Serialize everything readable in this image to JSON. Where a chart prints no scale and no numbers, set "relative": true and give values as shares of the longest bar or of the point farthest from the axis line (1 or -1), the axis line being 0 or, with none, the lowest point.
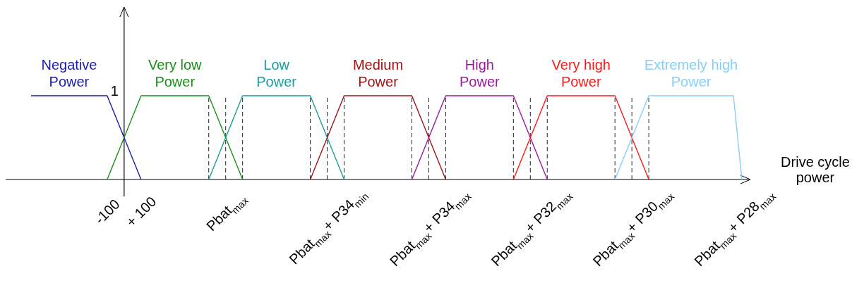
{
  "chart_data": {
    "type": "line",
    "xlabel": "Drive cycle power",
    "relative": true,
    "grid": "x",
    "categories": [
      null,
      null,
      null,
      null,
      null,
      null,
      null,
      null,
      null,
      null,
      null,
      null,
      "-100",
      null,
      null,
      null,
      "+ 100",
      null,
      null,
      null,
      null,
      null,
      null,
      null,
      null,
      null,
      "Pbat$_{max}$",
      null,
      null,
      null,
      null,
      null,
      null,
      null,
      null,
      null,
      null,
      null,
      "Pbat$_{max}$+ P34$_{min}$",
      null,
      null,
      null,
      null,
      null,
      null,
      null,
      null,
      null,
      null,
      null,
      "Pbat$_{max}$+ P34$_{max}$",
      null,
      null,
      null,
      null,
      null,
      null,
      null,
      null,
      null,
      null,
      null,
      "Pbat$_{max}$+ P32$_{max}$",
      null,
      null,
      null,
      null,
      null,
      null,
      null,
      null,
      null,
      null,
      null,
      "Pbat$_{max}$+ P30$_{max}$",
      null,
      null,
      null,
      null,
      null,
      null,
      null,
      null,
      null,
      null,
      null,
      "Pbat$_{max}$+ P28$_{max}$",
      null,
      null
    ],
    "series": [
      {
        "name": "Negative Power",
        "color": "#1c1cab",
        "values": [
          null,
          null,
          null,
          1,
          1,
          1,
          1,
          1,
          1,
          1,
          1,
          1,
          1,
          0.75,
          0.5,
          0.25,
          0,
          null,
          null,
          null,
          null,
          null,
          null,
          null,
          null,
          null,
          null,
          null,
          null,
          null,
          null,
          null,
          null,
          null,
          null,
          null,
          null,
          null,
          null,
          null,
          null,
          null,
          null,
          null,
          null,
          null,
          null,
          null,
          null,
          null,
          null,
          null,
          null,
          null,
          null,
          null,
          null,
          null,
          null,
          null,
          null,
          null,
          null,
          null,
          null,
          null,
          null,
          null,
          null,
          null,
          null,
          null,
          null,
          null,
          null,
          null,
          null,
          null,
          null,
          null,
          null,
          null,
          null,
          null,
          null,
          null,
          null,
          null,
          null
        ]
      },
      {
        "name": "Very low Power",
        "color": "#1a8f1a",
        "values": [
          null,
          null,
          null,
          null,
          null,
          null,
          null,
          null,
          null,
          null,
          null,
          null,
          0,
          0.25,
          0.5,
          0.75,
          1,
          1,
          1,
          1,
          1,
          1,
          1,
          1,
          1,
          0.75,
          0.5,
          0.25,
          0,
          null,
          null,
          null,
          null,
          null,
          null,
          null,
          null,
          null,
          null,
          null,
          null,
          null,
          null,
          null,
          null,
          null,
          null,
          null,
          null,
          null,
          null,
          null,
          null,
          null,
          null,
          null,
          null,
          null,
          null,
          null,
          null,
          null,
          null,
          null,
          null,
          null,
          null,
          null,
          null,
          null,
          null,
          null,
          null,
          null,
          null,
          null,
          null,
          null,
          null,
          null,
          null,
          null,
          null,
          null,
          null,
          null,
          null,
          null,
          null
        ]
      },
      {
        "name": "Low Power",
        "color": "#1a9c9c",
        "values": [
          null,
          null,
          null,
          null,
          null,
          null,
          null,
          null,
          null,
          null,
          null,
          null,
          null,
          null,
          null,
          null,
          null,
          null,
          null,
          null,
          null,
          null,
          null,
          null,
          0,
          0.25,
          0.5,
          0.75,
          1,
          1,
          1,
          1,
          1,
          1,
          1,
          1,
          1,
          0.75,
          0.5,
          0.25,
          0,
          null,
          null,
          null,
          null,
          null,
          null,
          null,
          null,
          null,
          null,
          null,
          null,
          null,
          null,
          null,
          null,
          null,
          null,
          null,
          null,
          null,
          null,
          null,
          null,
          null,
          null,
          null,
          null,
          null,
          null,
          null,
          null,
          null,
          null,
          null,
          null,
          null,
          null,
          null,
          null,
          null,
          null,
          null,
          null,
          null,
          null,
          null,
          null
        ]
      },
      {
        "name": "Medium Power",
        "color": "#a01414",
        "values": [
          null,
          null,
          null,
          null,
          null,
          null,
          null,
          null,
          null,
          null,
          null,
          null,
          null,
          null,
          null,
          null,
          null,
          null,
          null,
          null,
          null,
          null,
          null,
          null,
          null,
          null,
          null,
          null,
          null,
          null,
          null,
          null,
          null,
          null,
          null,
          null,
          0,
          0.25,
          0.5,
          0.75,
          1,
          1,
          1,
          1,
          1,
          1,
          1,
          1,
          1,
          0.75,
          0.5,
          0.25,
          0,
          null,
          null,
          null,
          null,
          null,
          null,
          null,
          null,
          null,
          null,
          null,
          null,
          null,
          null,
          null,
          null,
          null,
          null,
          null,
          null,
          null,
          null,
          null,
          null,
          null,
          null,
          null,
          null,
          null,
          null,
          null,
          null,
          null,
          null,
          null,
          null
        ]
      },
      {
        "name": "High Power",
        "color": "#9b1a9b",
        "values": [
          null,
          null,
          null,
          null,
          null,
          null,
          null,
          null,
          null,
          null,
          null,
          null,
          null,
          null,
          null,
          null,
          null,
          null,
          null,
          null,
          null,
          null,
          null,
          null,
          null,
          null,
          null,
          null,
          null,
          null,
          null,
          null,
          null,
          null,
          null,
          null,
          null,
          null,
          null,
          null,
          null,
          null,
          null,
          null,
          null,
          null,
          null,
          null,
          0,
          0.25,
          0.5,
          0.75,
          1,
          1,
          1,
          1,
          1,
          1,
          1,
          1,
          1,
          0.75,
          0.5,
          0.25,
          0,
          null,
          null,
          null,
          null,
          null,
          null,
          null,
          null,
          null,
          null,
          null,
          null,
          null,
          null,
          null,
          null,
          null,
          null,
          null,
          null,
          null,
          null,
          null,
          null
        ]
      },
      {
        "name": "Very high Power",
        "color": "#ff1a1a",
        "values": [
          null,
          null,
          null,
          null,
          null,
          null,
          null,
          null,
          null,
          null,
          null,
          null,
          null,
          null,
          null,
          null,
          null,
          null,
          null,
          null,
          null,
          null,
          null,
          null,
          null,
          null,
          null,
          null,
          null,
          null,
          null,
          null,
          null,
          null,
          null,
          null,
          null,
          null,
          null,
          null,
          null,
          null,
          null,
          null,
          null,
          null,
          null,
          null,
          null,
          null,
          null,
          null,
          null,
          null,
          null,
          null,
          null,
          null,
          null,
          null,
          0,
          0.25,
          0.5,
          0.75,
          1,
          1,
          1,
          1,
          1,
          1,
          1,
          1,
          1,
          0.75,
          0.5,
          0.25,
          0,
          null,
          null,
          null,
          null,
          null,
          null,
          null,
          null,
          null,
          null,
          null,
          null
        ]
      },
      {
        "name": "Extremely high Power",
        "color": "#87cefa",
        "values": [
          null,
          null,
          null,
          null,
          null,
          null,
          null,
          null,
          null,
          null,
          null,
          null,
          null,
          null,
          null,
          null,
          null,
          null,
          null,
          null,
          null,
          null,
          null,
          null,
          null,
          null,
          null,
          null,
          null,
          null,
          null,
          null,
          null,
          null,
          null,
          null,
          null,
          null,
          null,
          null,
          null,
          null,
          null,
          null,
          null,
          null,
          null,
          null,
          null,
          null,
          null,
          null,
          null,
          null,
          null,
          null,
          null,
          null,
          null,
          null,
          null,
          null,
          null,
          null,
          null,
          null,
          null,
          null,
          null,
          null,
          null,
          null,
          0,
          0.25,
          0.5,
          0.75,
          1,
          1,
          1,
          1,
          1,
          1,
          1,
          1,
          1,
          1,
          1,
          0,
          null
        ]
      }
    ],
    "annotations": [
      "1"
    ]
  }
}
